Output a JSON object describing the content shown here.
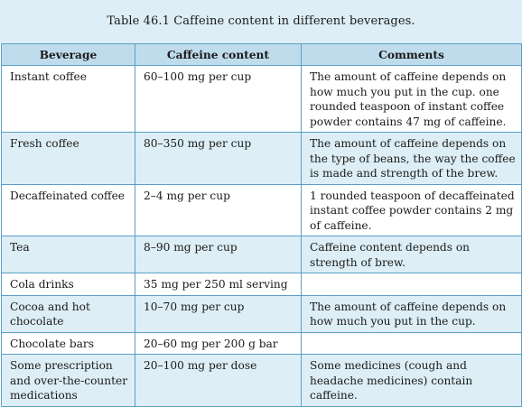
{
  "caption": "Table 46.1  Caffeine content in different beverages.",
  "headers": [
    "Beverage",
    "Caffeine content",
    "Comments"
  ],
  "rows": [
    {
      "beverage": "Instant coffee",
      "caffeine": "60–100 mg per cup",
      "comments": "The amount of caffeine depends on how much you put in the cup. one rounded teaspoon of instant coffee powder contains 47 mg of caffeine."
    },
    {
      "beverage": "Fresh coffee",
      "caffeine": "80–350 mg per cup",
      "comments": "The amount of caffeine depends on the type of beans, the way the coffee is made and strength of the brew."
    },
    {
      "beverage": "Decaffeinated coffee",
      "caffeine": "2–4 mg per cup",
      "comments": "1 rounded teaspoon of decaffeinated instant coffee powder contains 2 mg of caffeine."
    },
    {
      "beverage": "Tea",
      "caffeine": "8–90 mg per cup",
      "comments": "Caffeine content depends on strength of brew."
    },
    {
      "beverage": "Cola drinks",
      "caffeine": "35 mg per 250 ml serving",
      "comments": ""
    },
    {
      "beverage": "Cocoa and hot chocolate",
      "caffeine": "10–70 mg per cup",
      "comments": "The amount of caffeine depends on how much you put in the cup."
    },
    {
      "beverage": "Chocolate bars",
      "caffeine": "20–60 mg per 200 g bar",
      "comments": ""
    },
    {
      "beverage": "Some prescription and over-the-counter medications",
      "caffeine": "20–100 mg per dose",
      "comments": "Some medicines (cough and headache medicines) contain caffeine."
    }
  ]
}
